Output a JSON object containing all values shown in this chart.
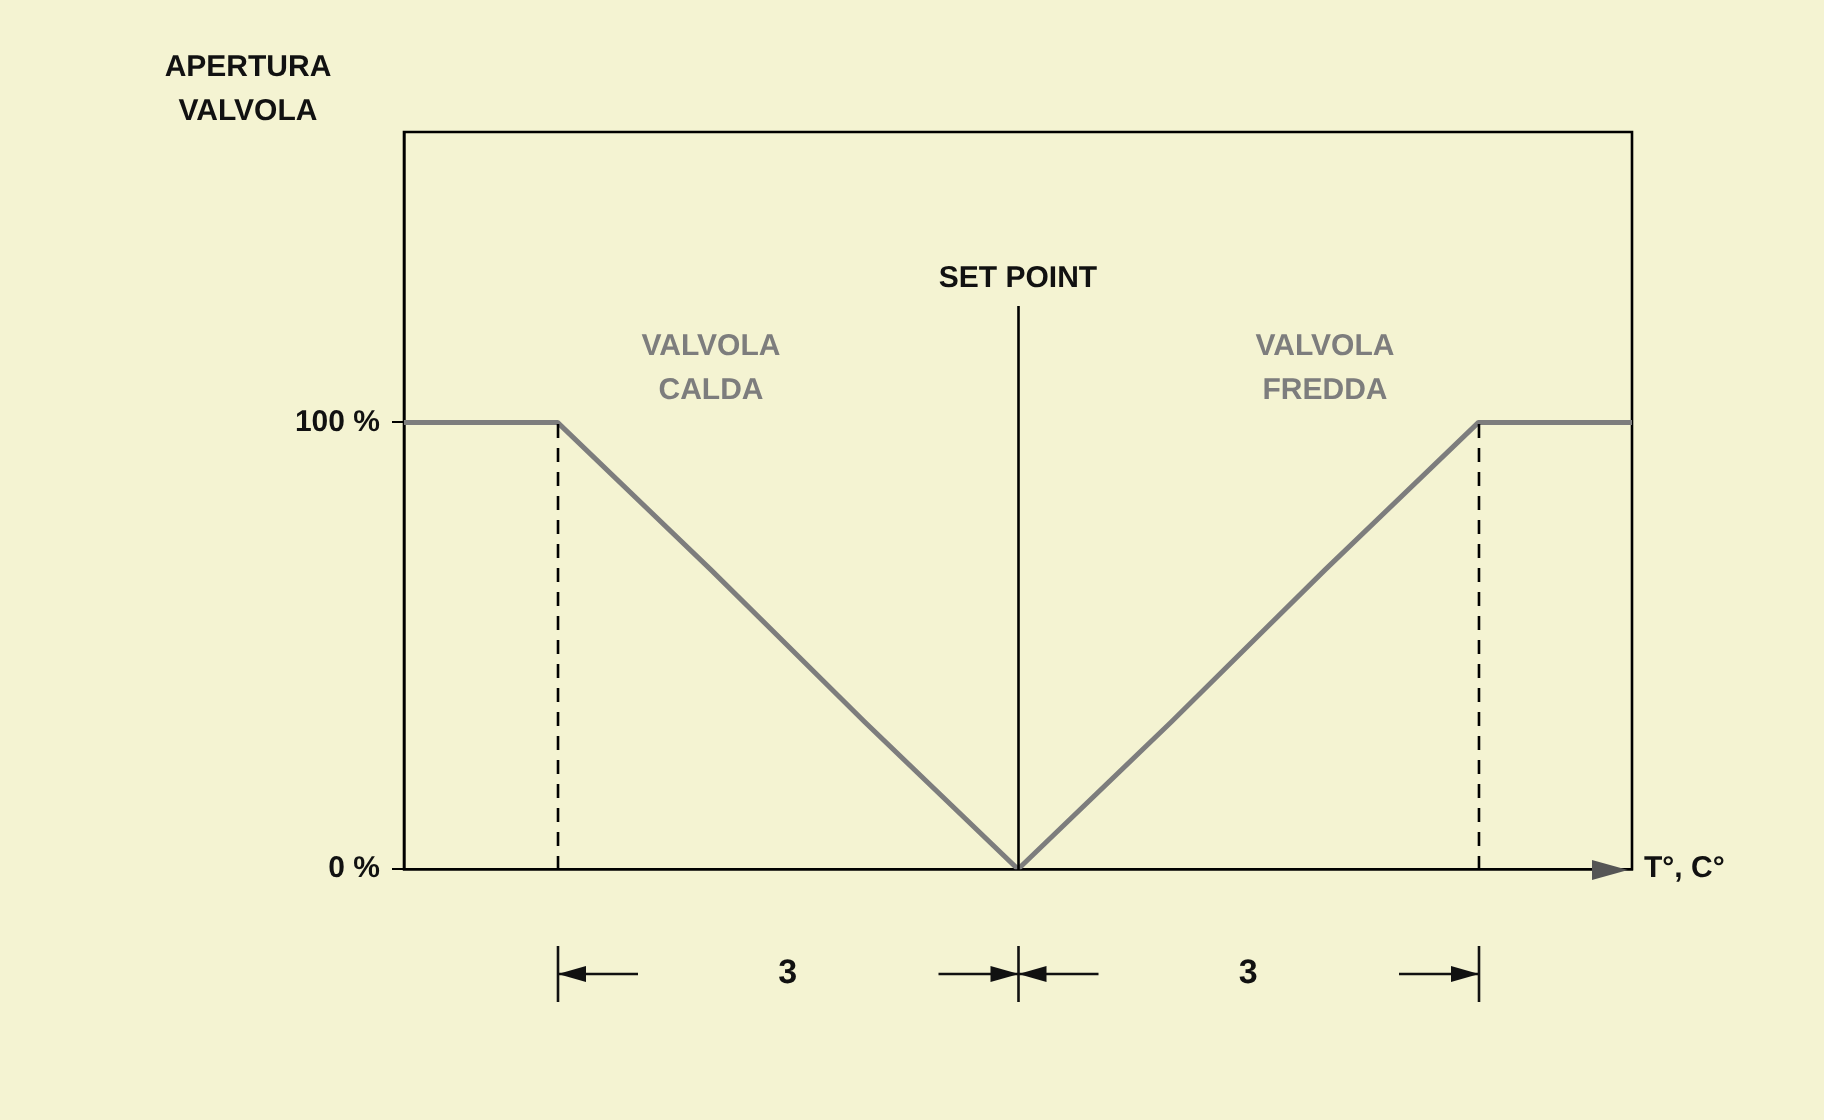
{
  "chart_data": {
    "type": "line",
    "ylabel": "APERTURA VALVOLA",
    "categories": [
      null,
      null,
      null,
      null,
      null,
      null,
      null,
      null,
      null
    ],
    "ylim": [
      0,
      165
    ],
    "yticks": [
      {
        "value": 0,
        "label": "0 %"
      },
      {
        "value": 100,
        "label": "100 %"
      }
    ],
    "tick_labels": "y",
    "grid": false,
    "legend": false,
    "marker": "none",
    "line_style": "solid",
    "series": [
      {
        "name": "VALVOLA CALDA",
        "color": "#7d7d7d",
        "values": [
          100,
          100,
          67,
          33,
          0,
          null,
          null,
          null,
          null
        ]
      },
      {
        "name": "VALVOLA FREDDA",
        "color": "#7d7d7d",
        "values": [
          null,
          null,
          null,
          null,
          0,
          33,
          67,
          100,
          100
        ]
      }
    ],
    "annotations": [
      "T°, C°",
      "SET POINT",
      "3",
      "3"
    ]
  }
}
